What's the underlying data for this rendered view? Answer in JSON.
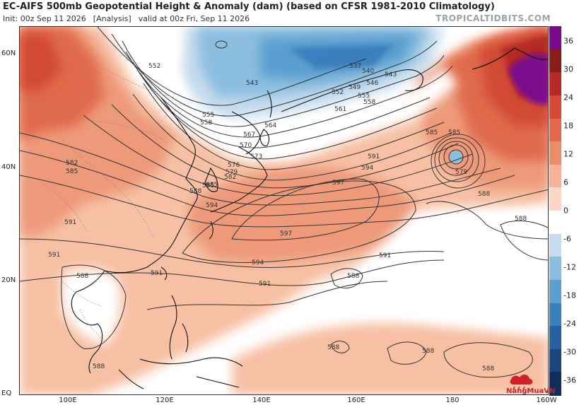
{
  "header": {
    "title": "EC-AIFS 500mb Geopotential Height & Anomaly (dam) (based on CFSR 1981-2010 Climatology)",
    "init": "Init: 00z Sep 11 2026",
    "analysis": "[Analysis]",
    "valid": "valid at 00z Fri, Sep 11 2026",
    "source": "TROPICALTIDBITS.COM"
  },
  "axes": {
    "lat_labels": [
      "60N",
      "40N",
      "20N",
      "EQ"
    ],
    "lon_labels": [
      "100E",
      "120E",
      "140E",
      "160E",
      "180",
      "160W"
    ]
  },
  "colorbar": {
    "labels": [
      "36",
      "30",
      "24",
      "18",
      "12",
      "6",
      "0",
      "-6",
      "-12",
      "-18",
      "-24",
      "-30",
      "-36"
    ],
    "colors": [
      "#7a0a8c",
      "#8b1a1a",
      "#b52a24",
      "#d24a35",
      "#e06a4c",
      "#eb8c6a",
      "#f5b294",
      "#fbd8c6",
      "#ffffff",
      "#c6dcee",
      "#8cbedf",
      "#5a9fcf",
      "#3a7fbd",
      "#27609f",
      "#1b467d",
      "#112e5b"
    ]
  },
  "contour_labels": [
    {
      "text": "552"
    },
    {
      "text": "543"
    },
    {
      "text": "555"
    },
    {
      "text": "558"
    },
    {
      "text": "537"
    },
    {
      "text": "540"
    },
    {
      "text": "546"
    },
    {
      "text": "543"
    },
    {
      "text": "549"
    },
    {
      "text": "552"
    },
    {
      "text": "555"
    },
    {
      "text": "558"
    },
    {
      "text": "561"
    },
    {
      "text": "564"
    },
    {
      "text": "567"
    },
    {
      "text": "570"
    },
    {
      "text": "573"
    },
    {
      "text": "576"
    },
    {
      "text": "579"
    },
    {
      "text": "582"
    },
    {
      "text": "585"
    },
    {
      "text": "588"
    },
    {
      "text": "582"
    },
    {
      "text": "585"
    },
    {
      "text": "591"
    },
    {
      "text": "594"
    },
    {
      "text": "597"
    },
    {
      "text": "597"
    },
    {
      "text": "594"
    },
    {
      "text": "591"
    },
    {
      "text": "591"
    },
    {
      "text": "591"
    },
    {
      "text": "591"
    },
    {
      "text": "591"
    },
    {
      "text": "588"
    },
    {
      "text": "588"
    },
    {
      "text": "588"
    },
    {
      "text": "588"
    },
    {
      "text": "588"
    },
    {
      "text": "588"
    },
    {
      "text": "588"
    },
    {
      "text": "588"
    },
    {
      "text": "585"
    },
    {
      "text": "585"
    },
    {
      "text": "579"
    },
    {
      "text": "594"
    },
    {
      "text": "585"
    }
  ],
  "logo": {
    "text": "NangMuaVN"
  }
}
